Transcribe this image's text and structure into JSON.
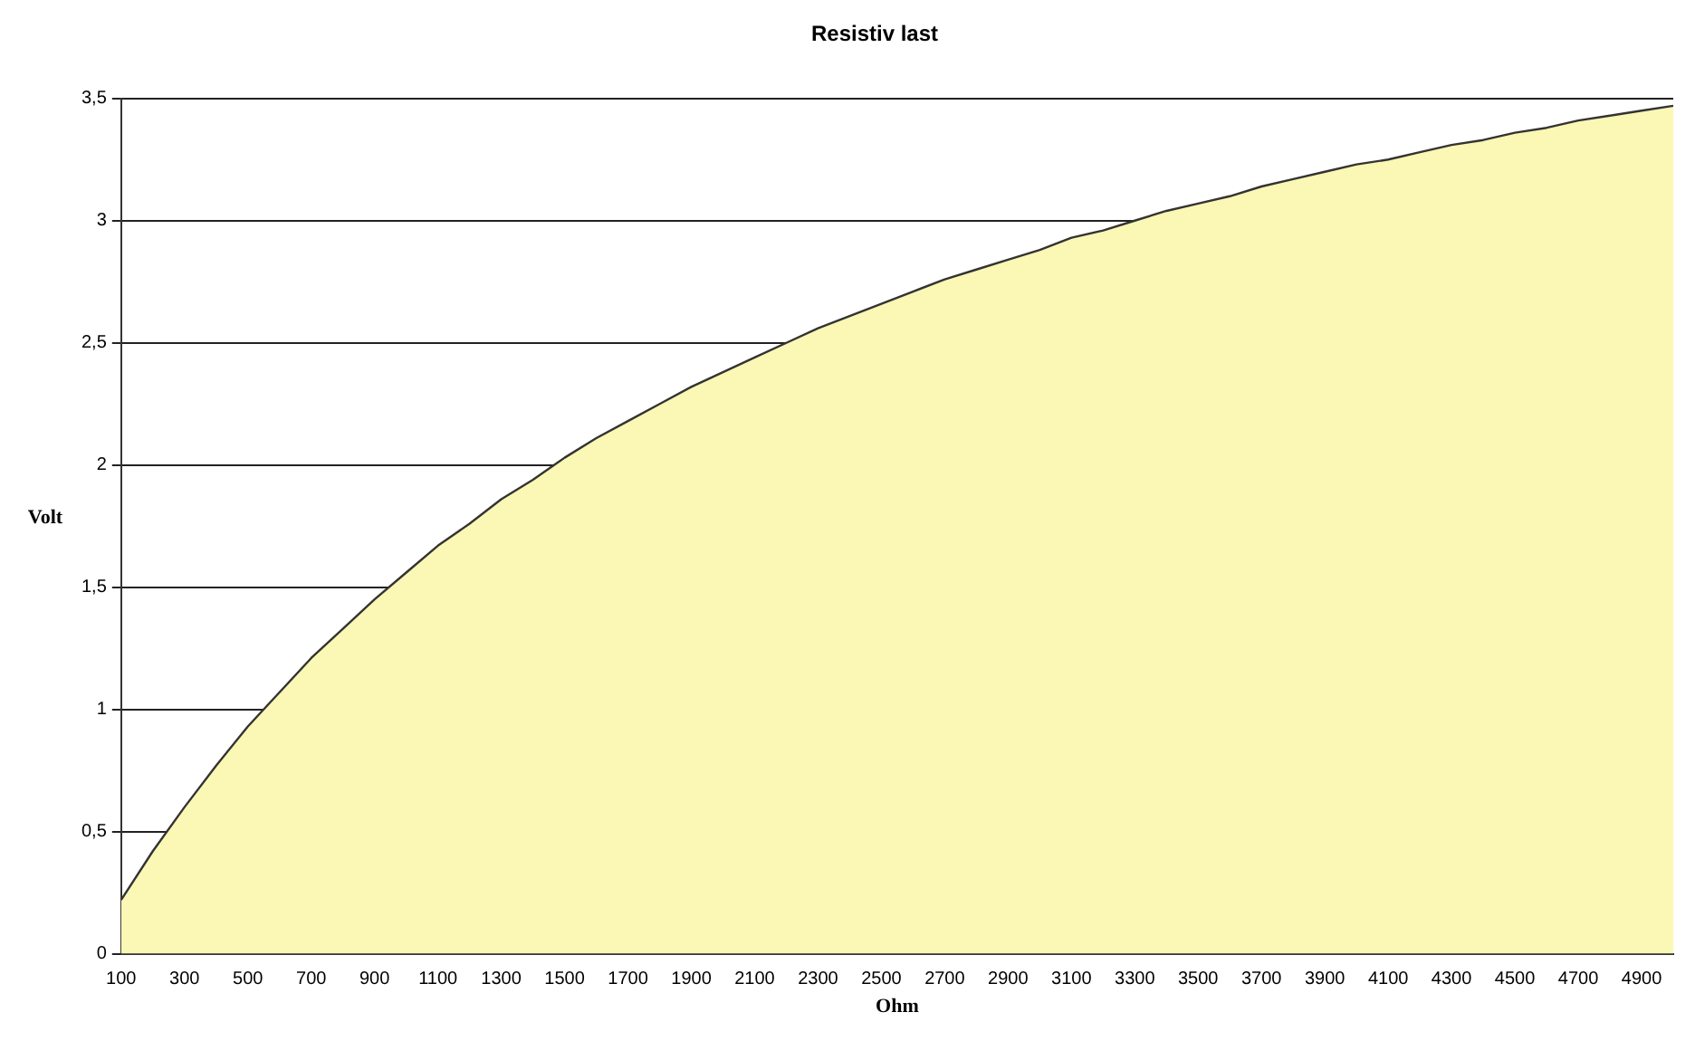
{
  "chart_data": {
    "type": "area",
    "title": "Resistiv last",
    "xlabel": "Ohm",
    "ylabel": "Volt",
    "categories": [
      "100",
      null,
      "300",
      null,
      "500",
      null,
      "700",
      null,
      "900",
      null,
      "1100",
      null,
      "1300",
      null,
      "1500",
      null,
      "1700",
      null,
      "1900",
      null,
      "2100",
      null,
      "2300",
      null,
      "2500",
      null,
      "2700",
      null,
      "2900",
      null,
      "3100",
      null,
      "3300",
      null,
      "3500",
      null,
      "3700",
      null,
      "3900",
      null,
      "4100",
      null,
      "4300",
      null,
      "4500",
      null,
      "4700",
      null,
      "4900",
      null
    ],
    "series": [
      {
        "color": "#fbf7b4",
        "values": [
          0.22,
          0.42,
          0.6,
          0.77,
          0.93,
          1.07,
          1.21,
          1.33,
          1.45,
          1.56,
          1.67,
          1.76,
          1.86,
          1.94,
          2.03,
          2.11,
          2.18,
          2.25,
          2.32,
          2.38,
          2.44,
          2.5,
          2.56,
          2.61,
          2.66,
          2.71,
          2.76,
          2.8,
          2.84,
          2.88,
          2.93,
          2.96,
          3.0,
          3.04,
          3.07,
          3.1,
          3.14,
          3.17,
          3.2,
          3.23,
          3.25,
          3.28,
          3.31,
          3.33,
          3.36,
          3.38,
          3.41,
          3.43,
          3.45,
          3.47
        ]
      }
    ],
    "ylim": [
      0,
      3.5
    ],
    "yticks": [
      0,
      {
        "value": 0.5,
        "label": "0,5"
      },
      1,
      {
        "value": 1.5,
        "label": "1,5"
      },
      2,
      {
        "value": 2.5,
        "label": "2,5"
      },
      3,
      {
        "value": 3.5,
        "label": "3,5"
      }
    ],
    "grid": "y",
    "legend": false,
    "marker": "none",
    "line_style": "solid"
  }
}
